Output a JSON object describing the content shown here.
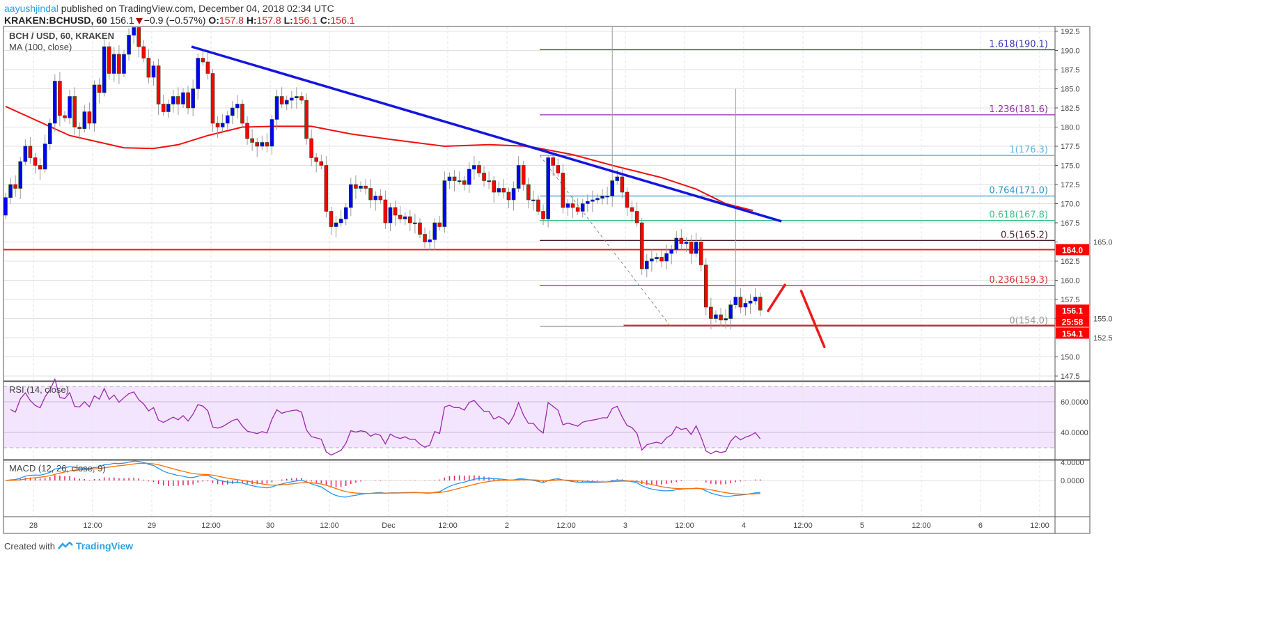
{
  "header": {
    "author": "aayushjindal",
    "published": "published on TradingView.com, December 04, 2018 02:34 UTC",
    "symbol": "KRAKEN:BCHUSD, 60",
    "last": "156.1",
    "change": "−0.9 (−0.57%)",
    "o_label": "O:",
    "o": "157.8",
    "h_label": "H:",
    "h": "157.8",
    "l_label": "L:",
    "l": "156.1",
    "c_label": "C:",
    "c": "156.1"
  },
  "legend": {
    "main": "BCH / USD, 60, KRAKEN",
    "ma": "MA (100, close)",
    "rsi": "RSI (14, close)",
    "macd": "MACD (12, 26, close, 9)"
  },
  "footer": {
    "created": "Created with",
    "brand": "TradingView"
  },
  "colors": {
    "up": "#0000ff",
    "down": "#ff0000",
    "ma": "#f01010",
    "trend": "#1515e0",
    "rsi": "#9c27b0",
    "rsi_bg": "#f3e5fd",
    "macd": "#2196f3",
    "signal": "#ff6d00",
    "hist": "#e91e63"
  },
  "chart_data": {
    "type": "candlestick",
    "title": "BCH / USD, 60, KRAKEN",
    "interval_minutes": 60,
    "ylim": [
      146.5,
      193.2
    ],
    "price_ticks": [
      "192.5",
      "190.0",
      "187.5",
      "185.0",
      "182.5",
      "180.0",
      "177.5",
      "175.0",
      "172.5",
      "170.0",
      "167.5",
      "165.0",
      "162.5",
      "160.0",
      "157.5",
      "155.0",
      "152.5",
      "150.0",
      "147.5"
    ],
    "time_ticks": [
      {
        "i": 5.65,
        "label": "28"
      },
      {
        "i": 17.65,
        "label": "12:00"
      },
      {
        "i": 29.65,
        "label": "29"
      },
      {
        "i": 41.65,
        "label": "12:00"
      },
      {
        "i": 53.65,
        "label": "30"
      },
      {
        "i": 65.65,
        "label": "12:00"
      },
      {
        "i": 77.65,
        "label": "Dec"
      },
      {
        "i": 89.65,
        "label": "12:00"
      },
      {
        "i": 101.65,
        "label": "2"
      },
      {
        "i": 113.65,
        "label": "12:00"
      },
      {
        "i": 125.65,
        "label": "3"
      },
      {
        "i": 137.65,
        "label": "12:00"
      },
      {
        "i": 149.65,
        "label": "4"
      },
      {
        "i": 161.65,
        "label": "12:00"
      },
      {
        "i": 173.65,
        "label": "5"
      },
      {
        "i": 185.65,
        "label": "12:00"
      },
      {
        "i": 197.65,
        "label": "6"
      },
      {
        "i": 209.65,
        "label": "12:00"
      }
    ],
    "start_open": 168.5,
    "closes": [
      170.8,
      172.5,
      172.0,
      175.5,
      177.5,
      176.0,
      175.0,
      174.5,
      177.8,
      180.5,
      186.0,
      181.5,
      181.2,
      184.0,
      180.0,
      179.8,
      182.0,
      180.5,
      185.5,
      184.5,
      190.5,
      187.0,
      189.5,
      187.0,
      189.5,
      192.0,
      193.0,
      190.5,
      189.0,
      186.5,
      188.0,
      183.0,
      182.0,
      183.0,
      184.0,
      183.0,
      184.5,
      182.5,
      185.0,
      189.0,
      188.5,
      187.0,
      180.5,
      180.0,
      180.5,
      181.5,
      182.5,
      183.0,
      180.5,
      178.5,
      178.0,
      177.5,
      178.0,
      177.5,
      181.0,
      184.0,
      183.0,
      183.5,
      183.8,
      184.0,
      183.5,
      178.5,
      176.0,
      175.5,
      175.0,
      169.0,
      167.0,
      167.5,
      168.0,
      169.5,
      172.5,
      172.0,
      172.3,
      172.0,
      170.5,
      171.0,
      170.5,
      167.5,
      169.5,
      168.5,
      168.0,
      168.3,
      167.5,
      167.5,
      166.0,
      165.0,
      165.3,
      167.5,
      167.0,
      173.0,
      173.5,
      173.0,
      173.0,
      172.5,
      174.5,
      175.0,
      174.0,
      173.0,
      173.0,
      171.5,
      172.0,
      171.5,
      170.5,
      172.0,
      175.0,
      172.5,
      170.5,
      170.5,
      169.0,
      168.0,
      176.0,
      175.0,
      174.0,
      169.5,
      170.0,
      169.5,
      169.0,
      170.0,
      170.3,
      170.5,
      170.7,
      171.0,
      171.0,
      173.0,
      173.5,
      171.5,
      169.5,
      169.0,
      167.5,
      161.5,
      162.5,
      162.8,
      163.0,
      162.5,
      163.5,
      164.0,
      165.5,
      164.8,
      165.0,
      163.5,
      165.0,
      162.0,
      156.5,
      155.0,
      155.5,
      154.8,
      155.0,
      156.8,
      157.8,
      156.5,
      157.0,
      157.3,
      157.8,
      156.1
    ],
    "long_wicks": [
      {
        "i": 123,
        "high": 193.2
      },
      {
        "i": 148,
        "high": 185.0
      },
      {
        "i": 110,
        "high": 176.4
      }
    ],
    "ma100": [
      [
        0,
        182.7
      ],
      [
        13,
        178.9
      ],
      [
        24,
        177.3
      ],
      [
        30,
        177.2
      ],
      [
        35,
        177.7
      ],
      [
        41,
        178.9
      ],
      [
        48,
        180.0
      ],
      [
        55,
        180.1
      ],
      [
        62,
        180.1
      ],
      [
        70,
        179.1
      ],
      [
        78,
        178.4
      ],
      [
        89,
        177.5
      ],
      [
        98,
        177.7
      ],
      [
        106,
        177.5
      ],
      [
        115,
        176.4
      ],
      [
        123,
        175.0
      ],
      [
        133,
        173.4
      ],
      [
        140,
        171.9
      ],
      [
        146,
        170.0
      ],
      [
        151.5,
        169.1
      ]
    ],
    "trendline": {
      "from": {
        "i": 37.7,
        "price": 190.5
      },
      "to": {
        "i": 157.3,
        "price": 167.7
      }
    },
    "dashed_line": {
      "from": {
        "i": 108.3,
        "price": 176.3
      },
      "to": {
        "i": 134.8,
        "price": 154.0
      }
    },
    "horizontal_lines": [
      {
        "price": 164.0,
        "from_i": -1
      },
      {
        "price": 154.1,
        "from_i": 125.3
      }
    ],
    "arrows": [
      {
        "from": {
          "i": 154.6,
          "price": 156.0
        },
        "to": {
          "i": 158.0,
          "price": 159.4
        }
      },
      {
        "from": {
          "i": 161.3,
          "price": 158.6
        },
        "to": {
          "i": 166.0,
          "price": 151.3
        }
      }
    ],
    "fib_start_i": 108.3,
    "fib_levels": [
      {
        "label": "1.618(190.1)",
        "price": 190.1,
        "color": "#3a3ab8"
      },
      {
        "label": "1.236(181.6)",
        "price": 181.6,
        "color": "#9c27b0"
      },
      {
        "label": "1(176.3)",
        "price": 176.3,
        "color": "#5fb4e0"
      },
      {
        "label": "0.764(171.0)",
        "price": 171.0,
        "color": "#2a96c8"
      },
      {
        "label": "0.618(167.8)",
        "price": 167.8,
        "color": "#3cc08c"
      },
      {
        "label": "0.5(165.2)",
        "price": 165.2,
        "color": "#4a1e2e"
      },
      {
        "label": "0.236(159.3)",
        "price": 159.3,
        "color": "#d83030"
      },
      {
        "label": "0(154.0)",
        "price": 154.0,
        "color": "#9a9a9a"
      }
    ],
    "axis_badges": [
      {
        "label": "164.0",
        "price": 164.0
      },
      {
        "label": "156.1",
        "price": 156.1
      },
      {
        "label": "25:58",
        "price": 154.65
      },
      {
        "label": "154.1",
        "price": 153.1
      }
    ],
    "rsi": {
      "period": 14,
      "ticks": [
        "60.0000",
        "40.0000"
      ],
      "band": [
        30,
        70
      ]
    },
    "macd": {
      "fast": 12,
      "slow": 26,
      "signal": 9,
      "ticks": [
        "4.0000",
        "0.0000"
      ]
    }
  }
}
